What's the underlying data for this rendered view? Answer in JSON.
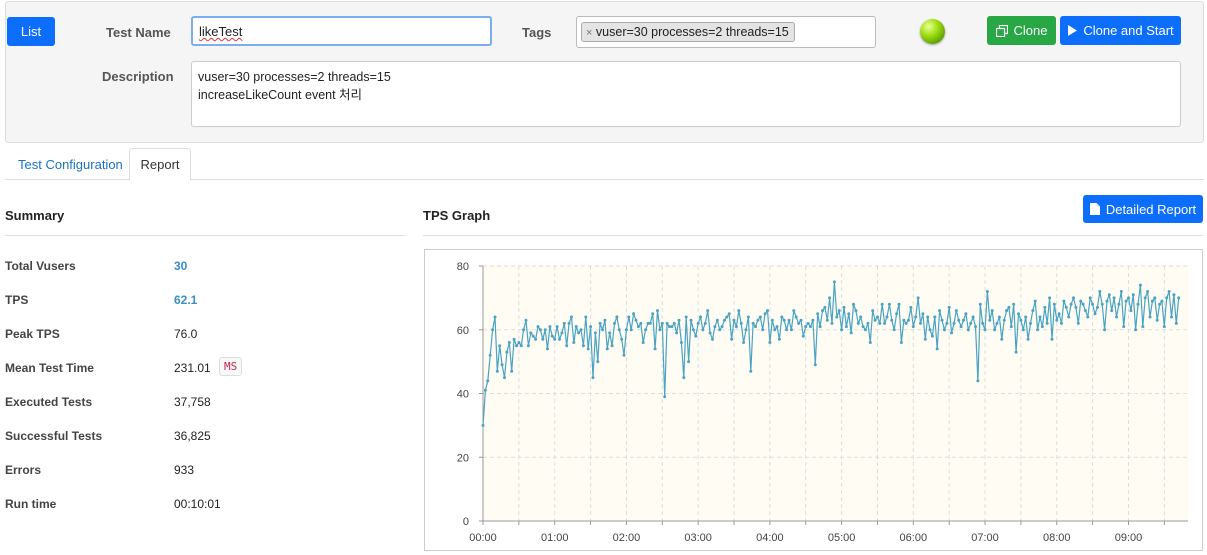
{
  "header": {
    "list_button": "List",
    "test_name_label": "Test Name",
    "test_name_value": "likeTest",
    "tags_label": "Tags",
    "tag_value": "vuser=30 processes=2 threads=15",
    "tag_remove_glyph": "×",
    "clone_button": "Clone",
    "clone_start_button": "Clone and Start",
    "description_label": "Description",
    "description_line1": "vuser=30 processes=2 threads=15",
    "description_line2": "increaseLikeCount event 처리",
    "status_color": "#7bc300"
  },
  "tabs": {
    "config": "Test Configuration",
    "report": "Report"
  },
  "summary": {
    "title": "Summary",
    "rows": [
      {
        "label": "Total Vusers",
        "value": "30"
      },
      {
        "label": "TPS",
        "value": "62.1"
      },
      {
        "label": "Peak TPS",
        "value": "76.0"
      },
      {
        "label": "Mean Test Time",
        "value": "231.01",
        "unit": "MS"
      },
      {
        "label": "Executed Tests",
        "value": "37,758"
      },
      {
        "label": "Successful Tests",
        "value": "36,825"
      },
      {
        "label": "Errors",
        "value": "933"
      },
      {
        "label": "Run time",
        "value": "00:10:01"
      }
    ]
  },
  "graph": {
    "title": "TPS Graph",
    "detailed_button": "Detailed Report"
  },
  "chart_data": {
    "type": "line",
    "title": "",
    "xlabel": "",
    "ylabel": "",
    "ylim": [
      0,
      80
    ],
    "xlim_minutes": [
      0,
      9.83
    ],
    "y_ticks": [
      "0",
      "20",
      "40",
      "60",
      "80"
    ],
    "x_ticks": [
      "00:00",
      "01:00",
      "02:00",
      "03:00",
      "04:00",
      "05:00",
      "06:00",
      "07:00",
      "08:00",
      "09:00"
    ],
    "grid": true,
    "line_color": "#4aa3c4",
    "series": [
      {
        "sample_interval_seconds": 2,
        "values": [
          30,
          41,
          44,
          52,
          60,
          64,
          47,
          55,
          49,
          45,
          53,
          56,
          47,
          57,
          55,
          56,
          55,
          60,
          63,
          55,
          59,
          58,
          57,
          61,
          60,
          57,
          60,
          54,
          61,
          58,
          57,
          61,
          57,
          59,
          62,
          55,
          62,
          64,
          56,
          61,
          59,
          60,
          55,
          64,
          54,
          61,
          45,
          59,
          50,
          62,
          60,
          63,
          54,
          59,
          55,
          62,
          64,
          60,
          57,
          52,
          60,
          64,
          60,
          65,
          63,
          61,
          62,
          56,
          60,
          62,
          62,
          65,
          54,
          66,
          60,
          62,
          39,
          62,
          61,
          61,
          62,
          59,
          63,
          56,
          45,
          64,
          50,
          63,
          60,
          58,
          62,
          64,
          60,
          62,
          66,
          59,
          57,
          61,
          63,
          60,
          61,
          63,
          64,
          65,
          57,
          63,
          61,
          66,
          62,
          56,
          60,
          64,
          47,
          62,
          61,
          63,
          64,
          60,
          65,
          66,
          56,
          63,
          60,
          61,
          57,
          64,
          63,
          60,
          63,
          60,
          66,
          64,
          62,
          63,
          58,
          61,
          62,
          61,
          63,
          49,
          65,
          61,
          66,
          67,
          63,
          70,
          62,
          75,
          64,
          66,
          60,
          67,
          61,
          65,
          59,
          68,
          66,
          62,
          64,
          61,
          60,
          62,
          56,
          66,
          63,
          64,
          62,
          68,
          62,
          64,
          68,
          63,
          60,
          65,
          68,
          56,
          63,
          62,
          63,
          67,
          61,
          64,
          70,
          62,
          65,
          57,
          64,
          60,
          58,
          64,
          54,
          66,
          63,
          60,
          62,
          67,
          59,
          62,
          66,
          63,
          61,
          63,
          65,
          60,
          62,
          64,
          61,
          44,
          68,
          62,
          60,
          72,
          63,
          66,
          60,
          62,
          64,
          57,
          63,
          66,
          67,
          61,
          68,
          53,
          65,
          63,
          60,
          64,
          57,
          62,
          66,
          69,
          60,
          64,
          61,
          67,
          62,
          70,
          57,
          68,
          63,
          65,
          62,
          69,
          67,
          64,
          68,
          70,
          67,
          62,
          69,
          68,
          66,
          64,
          70,
          68,
          65,
          67,
          72,
          68,
          60,
          69,
          71,
          66,
          70,
          64,
          68,
          72,
          61,
          69,
          70,
          66,
          71,
          60,
          68,
          74,
          61,
          70,
          72,
          64,
          69,
          70,
          63,
          68,
          69,
          61,
          70,
          72,
          64,
          71,
          62,
          70
        ]
      }
    ]
  }
}
